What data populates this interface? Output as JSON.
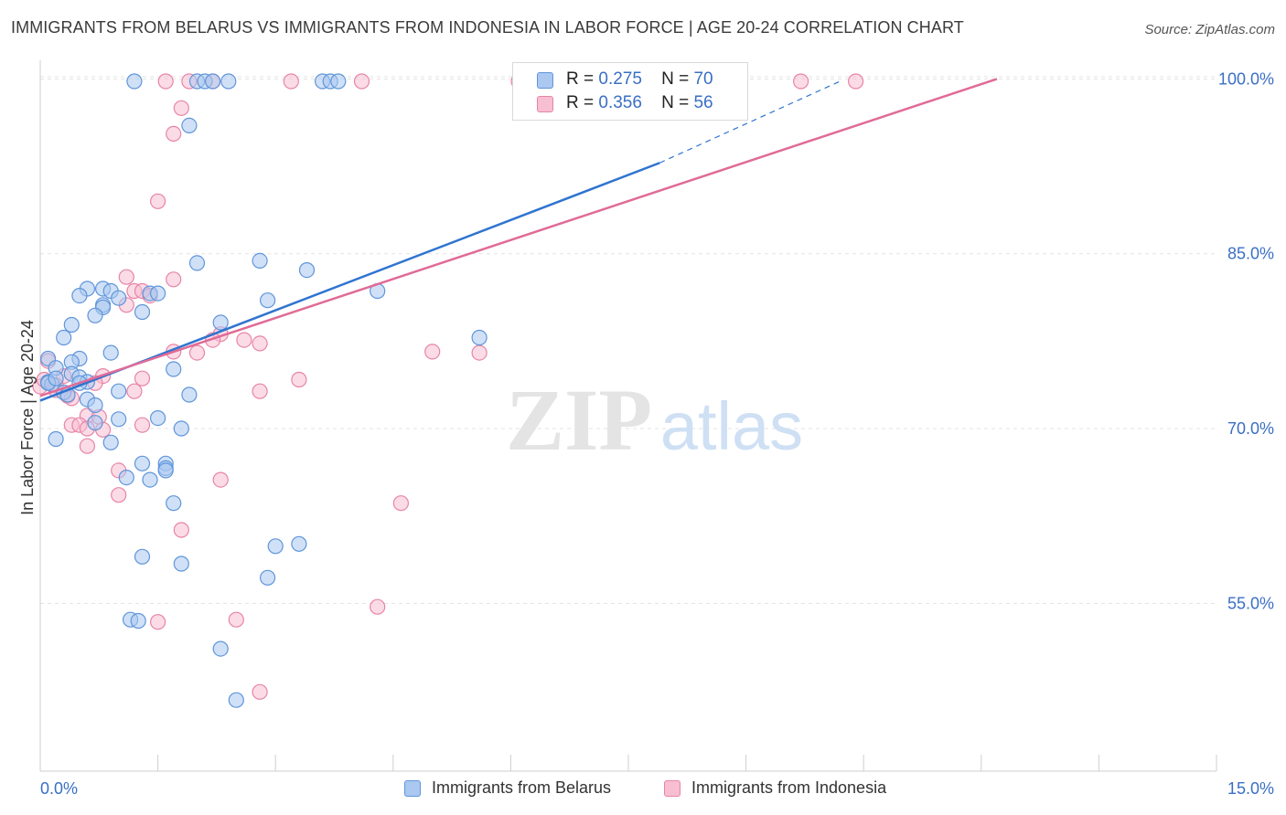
{
  "title": "IMMIGRANTS FROM BELARUS VS IMMIGRANTS FROM INDONESIA IN LABOR FORCE | AGE 20-24 CORRELATION CHART",
  "source": "Source: ZipAtlas.com",
  "watermark": {
    "zip": "ZIP",
    "atlas": "atlas"
  },
  "legend": {
    "r_label": "R =",
    "n_label": "N =",
    "rows": [
      {
        "r": "0.275",
        "n": "70"
      },
      {
        "r": "0.356",
        "n": "56"
      }
    ]
  },
  "chart_data": {
    "type": "scatter",
    "title": "IMMIGRANTS FROM BELARUS VS IMMIGRANTS FROM INDONESIA IN LABOR FORCE | AGE 20-24 CORRELATION CHART",
    "xlabel": "",
    "ylabel": "In Labor Force | Age 20-24",
    "xlim": [
      0,
      15
    ],
    "ylim": [
      40,
      102
    ],
    "x_tick_labels": [
      "0.0%",
      "15.0%"
    ],
    "y_ticks": [
      55,
      70,
      85,
      100
    ],
    "y_tick_labels": [
      "55.0%",
      "70.0%",
      "85.0%",
      "100.0%"
    ],
    "grid": true,
    "legend_position": "top-center",
    "colors": {
      "belarus_fill": "#aac8f0",
      "belarus_stroke": "#5f95da",
      "belarus_line": "#2f74d0",
      "indonesia_fill": "#f7bfd1",
      "indonesia_stroke": "#e884a7",
      "indonesia_line": "#e06b97",
      "axis_text": "#3a6fc4",
      "grid": "#e3e3e3"
    },
    "series": [
      {
        "name": "Immigrants from Belarus",
        "r": 0.275,
        "n": 70,
        "trend": {
          "x": [
            0,
            7.9
          ],
          "y": [
            72.4,
            92.8
          ],
          "dashed_x": [
            7.9,
            10.2
          ],
          "dashed_y": [
            92.8,
            99.8
          ]
        },
        "points": [
          [
            1.2,
            99.8
          ],
          [
            2.0,
            99.8
          ],
          [
            2.1,
            99.8
          ],
          [
            2.2,
            99.8
          ],
          [
            2.4,
            99.8
          ],
          [
            3.6,
            99.8
          ],
          [
            3.7,
            99.8
          ],
          [
            3.8,
            99.8
          ],
          [
            1.9,
            96.0
          ],
          [
            2.0,
            84.2
          ],
          [
            2.8,
            84.4
          ],
          [
            3.4,
            83.6
          ],
          [
            0.6,
            82.0
          ],
          [
            0.8,
            82.0
          ],
          [
            0.5,
            81.4
          ],
          [
            0.9,
            81.8
          ],
          [
            1.4,
            81.6
          ],
          [
            1.5,
            81.6
          ],
          [
            1.0,
            81.2
          ],
          [
            0.8,
            80.6
          ],
          [
            0.8,
            80.4
          ],
          [
            2.9,
            81.0
          ],
          [
            4.3,
            81.8
          ],
          [
            1.3,
            80.0
          ],
          [
            0.7,
            79.7
          ],
          [
            2.3,
            79.1
          ],
          [
            0.4,
            78.9
          ],
          [
            0.3,
            77.8
          ],
          [
            5.6,
            77.8
          ],
          [
            0.1,
            76.0
          ],
          [
            0.5,
            76.0
          ],
          [
            0.4,
            75.7
          ],
          [
            0.9,
            76.5
          ],
          [
            1.7,
            75.1
          ],
          [
            0.2,
            75.2
          ],
          [
            0.4,
            74.7
          ],
          [
            0.5,
            74.4
          ],
          [
            0.6,
            74.0
          ],
          [
            0.1,
            74.0
          ],
          [
            0.15,
            73.8
          ],
          [
            0.3,
            73.1
          ],
          [
            1.0,
            73.2
          ],
          [
            1.9,
            72.9
          ],
          [
            0.6,
            72.5
          ],
          [
            0.7,
            72.0
          ],
          [
            0.7,
            70.5
          ],
          [
            1.0,
            70.8
          ],
          [
            1.5,
            70.9
          ],
          [
            1.8,
            70.0
          ],
          [
            0.2,
            69.1
          ],
          [
            0.9,
            68.8
          ],
          [
            1.3,
            67.0
          ],
          [
            1.6,
            67.0
          ],
          [
            1.6,
            66.6
          ],
          [
            1.6,
            66.4
          ],
          [
            1.1,
            65.8
          ],
          [
            1.4,
            65.6
          ],
          [
            1.7,
            63.6
          ],
          [
            1.3,
            59.0
          ],
          [
            1.8,
            58.4
          ],
          [
            3.0,
            59.9
          ],
          [
            3.3,
            60.1
          ],
          [
            2.9,
            57.2
          ],
          [
            1.15,
            53.6
          ],
          [
            1.25,
            53.5
          ],
          [
            2.3,
            51.1
          ],
          [
            2.5,
            46.7
          ],
          [
            0.1,
            73.9
          ],
          [
            0.2,
            74.3
          ],
          [
            0.35,
            72.9
          ],
          [
            0.5,
            73.9
          ]
        ]
      },
      {
        "name": "Immigrants from Indonesia",
        "r": 0.356,
        "n": 56,
        "trend": {
          "x": [
            0,
            12.2
          ],
          "y": [
            72.8,
            100.0
          ]
        },
        "points": [
          [
            1.6,
            99.8
          ],
          [
            1.9,
            99.8
          ],
          [
            2.2,
            99.8
          ],
          [
            3.2,
            99.8
          ],
          [
            4.1,
            99.8
          ],
          [
            6.1,
            99.8
          ],
          [
            9.7,
            99.8
          ],
          [
            10.4,
            99.8
          ],
          [
            1.8,
            97.5
          ],
          [
            1.7,
            95.3
          ],
          [
            1.5,
            89.5
          ],
          [
            1.7,
            82.8
          ],
          [
            1.1,
            83.0
          ],
          [
            1.2,
            81.8
          ],
          [
            1.3,
            81.8
          ],
          [
            1.4,
            81.4
          ],
          [
            1.1,
            80.6
          ],
          [
            2.3,
            78.1
          ],
          [
            2.2,
            77.6
          ],
          [
            2.6,
            77.6
          ],
          [
            2.8,
            77.3
          ],
          [
            1.7,
            76.6
          ],
          [
            2.0,
            76.5
          ],
          [
            5.0,
            76.6
          ],
          [
            5.6,
            76.5
          ],
          [
            0.1,
            75.8
          ],
          [
            0.3,
            74.5
          ],
          [
            0.8,
            74.5
          ],
          [
            1.3,
            74.3
          ],
          [
            3.3,
            74.2
          ],
          [
            0.7,
            73.9
          ],
          [
            0.2,
            73.7
          ],
          [
            0.0,
            73.6
          ],
          [
            1.2,
            73.2
          ],
          [
            2.8,
            73.2
          ],
          [
            0.35,
            72.8
          ],
          [
            0.4,
            72.6
          ],
          [
            0.6,
            71.1
          ],
          [
            0.75,
            71.0
          ],
          [
            0.4,
            70.3
          ],
          [
            0.5,
            70.3
          ],
          [
            1.3,
            70.3
          ],
          [
            0.6,
            70.0
          ],
          [
            0.8,
            69.9
          ],
          [
            0.6,
            68.5
          ],
          [
            1.0,
            66.4
          ],
          [
            1.0,
            64.3
          ],
          [
            2.3,
            65.6
          ],
          [
            4.6,
            63.6
          ],
          [
            1.8,
            61.3
          ],
          [
            4.3,
            54.7
          ],
          [
            1.5,
            53.4
          ],
          [
            2.5,
            53.6
          ],
          [
            2.8,
            47.4
          ],
          [
            0.05,
            74.2
          ],
          [
            0.2,
            73.3
          ]
        ]
      }
    ]
  }
}
